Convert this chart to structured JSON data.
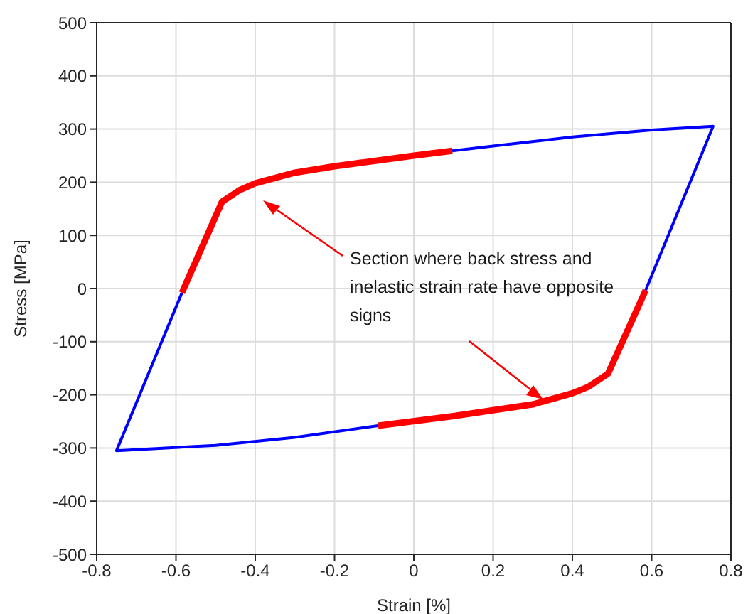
{
  "chart_data": {
    "type": "line",
    "xlabel": "Strain [%]",
    "ylabel": "Stress [MPa]",
    "xlim": [
      -0.8,
      0.8
    ],
    "xticks": [
      -0.8,
      -0.6,
      -0.4,
      -0.2,
      0,
      0.2,
      0.4,
      0.6,
      0.8
    ],
    "ylim": [
      -500,
      500
    ],
    "yticks": [
      -500,
      -400,
      -300,
      -200,
      -100,
      0,
      100,
      200,
      300,
      400,
      500
    ],
    "grid": true,
    "marker": "none",
    "line_style": "solid",
    "series": [
      {
        "color": "#0000ff",
        "x": [
          -0.09,
          -0.3,
          -0.5,
          -0.75,
          -0.585
        ],
        "values": [
          -258,
          -280,
          -295,
          -305,
          -8
        ]
      },
      {
        "color": "#0000ff",
        "x": [
          0.097,
          0.2,
          0.4,
          0.6,
          0.755,
          0.585
        ],
        "values": [
          259,
          268,
          285,
          298,
          305,
          -3
        ]
      },
      {
        "color": "#ff0000",
        "x": [
          -0.585,
          -0.484,
          -0.44,
          -0.4,
          -0.3,
          -0.2,
          0,
          0.097
        ],
        "values": [
          -8,
          163,
          185,
          198,
          218,
          230,
          250,
          259
        ]
      },
      {
        "color": "#ff0000",
        "x": [
          0.585,
          0.49,
          0.44,
          0.4,
          0.3,
          0.1,
          -0.09
        ],
        "values": [
          -3,
          -160,
          -185,
          -197,
          -218,
          -240,
          -258
        ]
      }
    ],
    "annotations": [
      "Section where back stress and inelastic strain rate have opposite signs"
    ]
  }
}
